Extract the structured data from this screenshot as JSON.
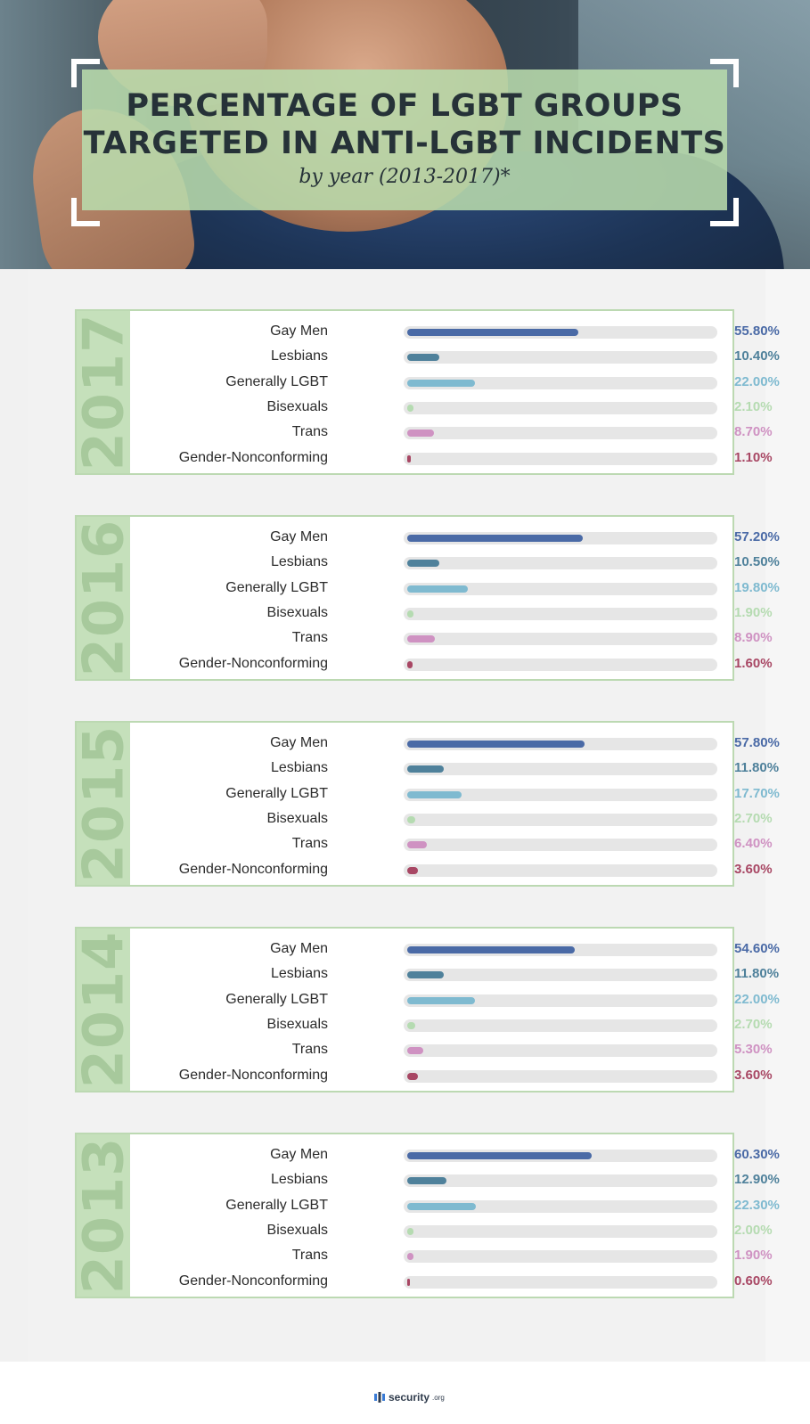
{
  "header": {
    "title_line1": "PERCENTAGE OF LGBT GROUPS",
    "title_line2": "TARGETED IN ANTI-LGBT INCIDENTS",
    "subtitle": "by year (2013-2017)*"
  },
  "colors": {
    "Gay Men": "#4a6aa6",
    "Lesbians": "#4f819b",
    "Generally LGBT": "#7fbad0",
    "Bisexuals": "#b5dbb1",
    "Trans": "#cf92c2",
    "Gender-Nonconforming": "#a84764"
  },
  "chart_data": {
    "type": "bar",
    "orientation": "horizontal",
    "title": "PERCENTAGE OF LGBT GROUPS TARGETED IN ANTI-LGBT INCIDENTS",
    "subtitle": "by year (2013-2017)*",
    "categories": [
      "Gay Men",
      "Lesbians",
      "Generally LGBT",
      "Bisexuals",
      "Trans",
      "Gender-Nonconforming"
    ],
    "xlim": [
      0,
      100
    ],
    "unit": "%",
    "panels": [
      {
        "year": "2017",
        "values": [
          55.8,
          10.4,
          22.0,
          2.1,
          8.7,
          1.1
        ],
        "labels": [
          "55.80%",
          "10.40%",
          "22.00%",
          "2.10%",
          "8.70%",
          "1.10%"
        ]
      },
      {
        "year": "2016",
        "values": [
          57.2,
          10.5,
          19.8,
          1.9,
          8.9,
          1.6
        ],
        "labels": [
          "57.20%",
          "10.50%",
          "19.80%",
          "1.90%",
          "8.90%",
          "1.60%"
        ]
      },
      {
        "year": "2015",
        "values": [
          57.8,
          11.8,
          17.7,
          2.7,
          6.4,
          3.6
        ],
        "labels": [
          "57.80%",
          "11.80%",
          "17.70%",
          "2.70%",
          "6.40%",
          "3.60%"
        ]
      },
      {
        "year": "2014",
        "values": [
          54.6,
          11.8,
          22.0,
          2.7,
          5.3,
          3.6
        ],
        "labels": [
          "54.60%",
          "11.80%",
          "22.00%",
          "2.70%",
          "5.30%",
          "3.60%"
        ]
      },
      {
        "year": "2013",
        "values": [
          60.3,
          12.9,
          22.3,
          2.0,
          1.9,
          0.6
        ],
        "labels": [
          "60.30%",
          "12.90%",
          "22.30%",
          "2.00%",
          "1.90%",
          "0.60%"
        ]
      }
    ]
  },
  "footer": {
    "brand": "security",
    "tld": ".org",
    "logo_icon": "security-shield-icon"
  }
}
